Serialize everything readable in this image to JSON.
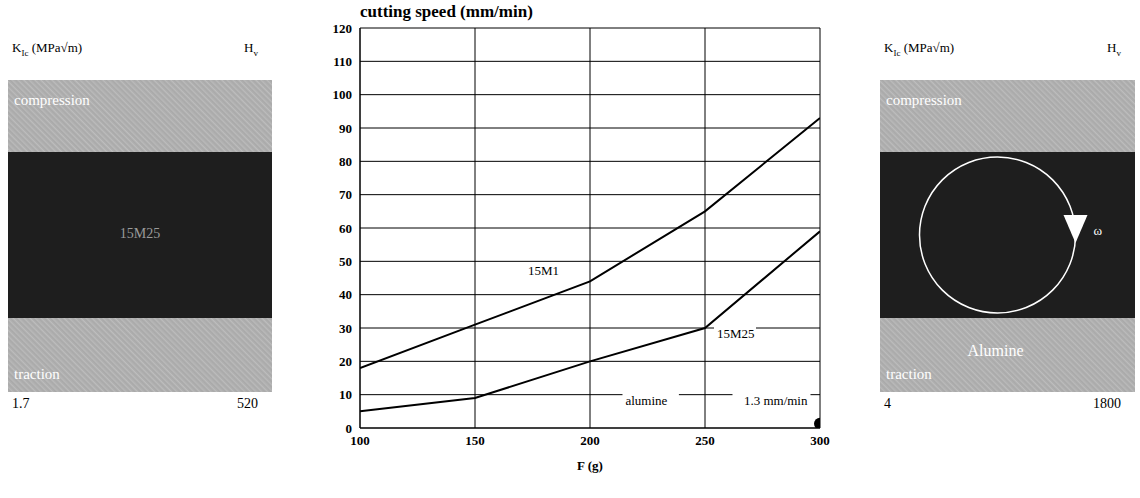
{
  "panels": [
    {
      "header_left": {
        "symbol": "K",
        "subscript": "Ic",
        "unit": "(MPa√m)"
      },
      "header_right": {
        "symbol": "H",
        "subscript": "v"
      },
      "top_label": "compression",
      "bottom_label": "traction",
      "material_label": "15M25",
      "K_Ic": 1.7,
      "H_v": 520
    },
    {
      "header_left": {
        "symbol": "K",
        "subscript": "Ic",
        "unit": "(MPa√m)"
      },
      "header_right": {
        "symbol": "H",
        "subscript": "v"
      },
      "top_label": "compression",
      "bottom_label": "traction",
      "material_label": "Alumine",
      "rotation_label": "ω",
      "K_Ic": 4,
      "H_v": 1800
    }
  ],
  "chart_data": {
    "type": "line",
    "title": "cutting speed (mm/min)",
    "x_label": "F (g)",
    "xlim": [
      100,
      300
    ],
    "xticks": [
      100,
      150,
      200,
      250,
      300
    ],
    "ylim": [
      0,
      120
    ],
    "yticks": [
      0,
      10,
      20,
      30,
      40,
      50,
      60,
      70,
      80,
      90,
      100,
      110,
      120
    ],
    "grid": true,
    "series": [
      {
        "name": "15M1",
        "color": "#000000",
        "x": [
          100,
          150,
          200,
          250,
          300
        ],
        "values": [
          18,
          31,
          44,
          65,
          93
        ]
      },
      {
        "name": "15M25",
        "color": "#000000",
        "x": [
          100,
          150,
          200,
          250,
          300
        ],
        "values": [
          5,
          9,
          20,
          30,
          59
        ]
      },
      {
        "name": "alumine",
        "type": "scatter",
        "marker": "circle",
        "color": "#000000",
        "x": [
          300
        ],
        "values": [
          1.3
        ],
        "annotation": "1.3 mm/min"
      }
    ]
  }
}
